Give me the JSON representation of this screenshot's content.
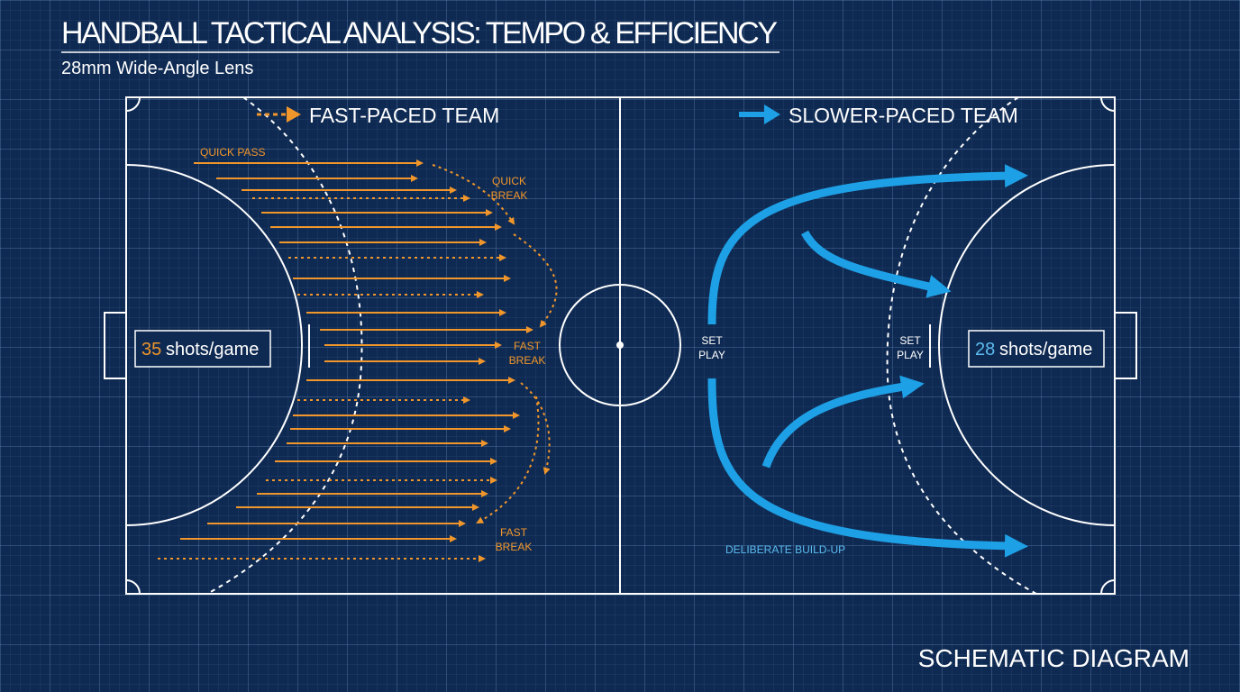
{
  "header": {
    "title": "HANDBALL TACTICAL ANALYSIS: TEMPO & EFFICIENCY",
    "subtitle": "28mm Wide-Angle Lens"
  },
  "left_team": {
    "legend": "FAST-PACED TEAM",
    "shots": "35",
    "shots_unit": "shots/game",
    "annotations": [
      "QUICK PASS",
      "QUICK",
      "BREAK",
      "FAST",
      "BREAK",
      "FAST",
      "BREAK"
    ]
  },
  "right_team": {
    "legend": "SLOWER-PACED TEAM",
    "shots": "28",
    "shots_unit": "shots/game",
    "annotations": [
      "SET",
      "PLAY",
      "SET",
      "PLAY",
      "DELIBERATE BUILD-UP"
    ]
  },
  "footer": "SCHEMATIC DIAGRAM"
}
